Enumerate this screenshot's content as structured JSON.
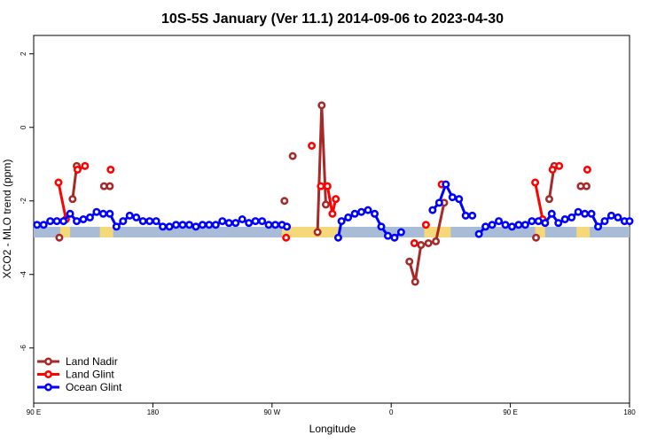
{
  "chart_data": {
    "type": "line",
    "title": "10S-5S January (Ver 11.1)   2014-09-06 to 2023-04-30",
    "xlabel": "Longitude",
    "ylabel": "XCO2 - MLO trend (ppm)",
    "xlim": [
      90,
      450
    ],
    "ylim": [
      -7.5,
      2.5
    ],
    "x_ticks": [
      {
        "value": 90,
        "label": "90 E"
      },
      {
        "value": 162,
        "label": "180"
      },
      {
        "value": 234,
        "label": "90 W"
      },
      {
        "value": 306,
        "label": "0"
      },
      {
        "value": 378,
        "label": "90 E"
      },
      {
        "value": 450,
        "label": "180"
      }
    ],
    "y_ticks": [
      {
        "value": 2,
        "label": "2"
      },
      {
        "value": 0,
        "label": "0"
      },
      {
        "value": -2,
        "label": "-2"
      },
      {
        "value": -4,
        "label": "-4"
      },
      {
        "value": -6,
        "label": "-6"
      }
    ],
    "grid": false,
    "legend": "bottom-left",
    "series": [
      {
        "name": "Land Nadir",
        "color": "#a52a2a",
        "segments": [
          {
            "x": [
              105.5
            ],
            "y": [
              -3.0
            ]
          },
          {
            "x": [
              113.5,
              116
            ],
            "y": [
              -1.95,
              -1.05
            ]
          },
          {
            "x": [
              132.5,
              136
            ],
            "y": [
              -1.6,
              -1.6
            ]
          },
          {
            "x": [
              241.5
            ],
            "y": [
              -2.0
            ]
          },
          {
            "x": [
              246.5
            ],
            "y": [
              -0.78
            ]
          },
          {
            "x": [
              261.5,
              264,
              266.5
            ],
            "y": [
              -2.85,
              0.6,
              -2.1
            ]
          },
          {
            "x": [
              317,
              320.5,
              324,
              328.5,
              333,
              338
            ],
            "y": [
              -3.65,
              -4.2,
              -3.2,
              -3.15,
              -3.1,
              -2.05
            ]
          },
          {
            "x": [
              393.5
            ],
            "y": [
              -3.0
            ]
          },
          {
            "x": [
              401.5,
              404.5
            ],
            "y": [
              -1.95,
              -1.05
            ]
          },
          {
            "x": [
              420.5,
              424
            ],
            "y": [
              -1.6,
              -1.6
            ]
          }
        ]
      },
      {
        "name": "Land Glint",
        "color": "#ff0000",
        "segments": [
          {
            "x": [
              105,
              109.5
            ],
            "y": [
              -1.5,
              -2.5
            ]
          },
          {
            "x": [
              116.5,
              121
            ],
            "y": [
              -1.15,
              -1.05
            ]
          },
          {
            "x": [
              136.5
            ],
            "y": [
              -1.15
            ]
          },
          {
            "x": [
              242.5
            ],
            "y": [
              -3.0
            ]
          },
          {
            "x": [
              258
            ],
            "y": [
              -0.5
            ]
          },
          {
            "x": [
              263.5,
              267.5,
              270.5,
              272.5
            ],
            "y": [
              -1.6,
              -1.6,
              -2.35,
              -1.95
            ]
          },
          {
            "x": [
              320
            ],
            "y": [
              -3.15
            ]
          },
          {
            "x": [
              327
            ],
            "y": [
              -2.65
            ]
          },
          {
            "x": [
              336.5
            ],
            "y": [
              -1.55
            ]
          },
          {
            "x": [
              393,
              397.5
            ],
            "y": [
              -1.5,
              -2.5
            ]
          },
          {
            "x": [
              403.5,
              407.5
            ],
            "y": [
              -1.15,
              -1.05
            ]
          },
          {
            "x": [
              424.5
            ],
            "y": [
              -1.15
            ]
          }
        ]
      },
      {
        "name": "Ocean Glint",
        "color": "#0000ff",
        "segments": [
          {
            "x": [
              92,
              96,
              100,
              104,
              108,
              112,
              116,
              120,
              124,
              128,
              132,
              136,
              140,
              144,
              148,
              152,
              156,
              160,
              164,
              168,
              172,
              176,
              180,
              184,
              188,
              192,
              196,
              200,
              204,
              208,
              212,
              216,
              220,
              224,
              228,
              232,
              236,
              240,
              243
            ],
            "y": [
              -2.65,
              -2.65,
              -2.55,
              -2.55,
              -2.55,
              -2.35,
              -2.55,
              -2.5,
              -2.45,
              -2.3,
              -2.35,
              -2.35,
              -2.7,
              -2.55,
              -2.4,
              -2.45,
              -2.55,
              -2.55,
              -2.55,
              -2.7,
              -2.7,
              -2.65,
              -2.65,
              -2.65,
              -2.7,
              -2.65,
              -2.65,
              -2.65,
              -2.55,
              -2.6,
              -2.6,
              -2.5,
              -2.6,
              -2.55,
              -2.55,
              -2.65,
              -2.65,
              -2.65,
              -2.7
            ]
          },
          {
            "x": [
              274,
              276,
              280,
              284,
              288,
              292,
              296,
              300,
              304,
              308,
              312
            ],
            "y": [
              -3.0,
              -2.55,
              -2.45,
              -2.35,
              -2.3,
              -2.25,
              -2.35,
              -2.7,
              -2.95,
              -3.0,
              -2.85
            ]
          },
          {
            "x": [
              331,
              335,
              339,
              343,
              347,
              351,
              355
            ],
            "y": [
              -2.25,
              -2.05,
              -1.55,
              -1.9,
              -1.95,
              -2.4,
              -2.4
            ]
          },
          {
            "x": [
              359,
              363,
              367,
              371,
              375,
              379,
              383,
              387,
              391,
              395,
              399,
              403,
              407,
              411,
              415,
              419,
              423,
              427,
              431,
              435,
              439,
              443,
              447,
              450
            ],
            "y": [
              -2.9,
              -2.7,
              -2.65,
              -2.55,
              -2.65,
              -2.7,
              -2.65,
              -2.65,
              -2.55,
              -2.55,
              -2.6,
              -2.35,
              -2.6,
              -2.5,
              -2.45,
              -2.3,
              -2.35,
              -2.35,
              -2.7,
              -2.55,
              -2.4,
              -2.45,
              -2.55,
              -2.55
            ]
          }
        ]
      }
    ]
  }
}
